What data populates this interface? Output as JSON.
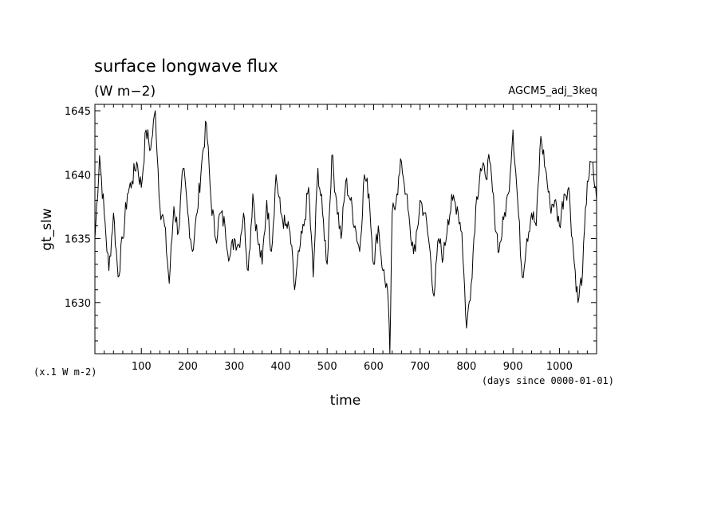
{
  "chart_data": {
    "type": "line",
    "title": "surface longwave flux",
    "units": "(W m−2)",
    "dataset_label": "AGCM5_adj_3keq",
    "xlabel": "time",
    "x_units_note": "(days since 0000-01-01)",
    "ylabel": "gt_slw",
    "y_scale_note": "(x.1 W m-2)",
    "xlim": [
      0,
      1080
    ],
    "ylim": [
      1626,
      1645.5
    ],
    "x_ticks": [
      100,
      200,
      300,
      400,
      500,
      600,
      700,
      800,
      900,
      1000
    ],
    "y_ticks": [
      1630,
      1635,
      1640,
      1645
    ],
    "grid": false,
    "series": [
      {
        "x": [
          0,
          10,
          20,
          30,
          40,
          50,
          60,
          70,
          80,
          90,
          100,
          110,
          120,
          130,
          140,
          150,
          160,
          170,
          180,
          190,
          200,
          210,
          220,
          230,
          240,
          250,
          260,
          270,
          280,
          290,
          300,
          310,
          320,
          330,
          340,
          350,
          360,
          370,
          380,
          390,
          400,
          410,
          420,
          430,
          440,
          450,
          460,
          470,
          480,
          490,
          500,
          510,
          520,
          530,
          540,
          550,
          560,
          570,
          580,
          590,
          600,
          610,
          620,
          630,
          635,
          640,
          650,
          660,
          670,
          680,
          690,
          700,
          710,
          720,
          730,
          740,
          750,
          760,
          770,
          780,
          790,
          800,
          810,
          820,
          830,
          840,
          850,
          860,
          870,
          880,
          890,
          900,
          910,
          920,
          930,
          940,
          950,
          960,
          970,
          980,
          990,
          1000,
          1010,
          1020,
          1030,
          1040,
          1050,
          1060,
          1070,
          1080
        ],
        "values": [
          1635.0,
          1641.5,
          1637.0,
          1632.5,
          1637.0,
          1632.0,
          1635.0,
          1638.5,
          1639.5,
          1641.0,
          1639.0,
          1643.5,
          1642.0,
          1645.0,
          1637.5,
          1636.0,
          1631.5,
          1637.5,
          1635.5,
          1640.5,
          1637.0,
          1634.0,
          1637.0,
          1641.0,
          1644.0,
          1638.0,
          1635.0,
          1637.0,
          1636.0,
          1633.5,
          1635.0,
          1634.5,
          1637.0,
          1632.5,
          1638.5,
          1635.0,
          1633.0,
          1638.0,
          1634.0,
          1640.0,
          1637.0,
          1636.0,
          1635.5,
          1631.0,
          1634.0,
          1636.0,
          1639.0,
          1632.0,
          1640.5,
          1637.0,
          1633.0,
          1641.5,
          1638.0,
          1635.0,
          1639.5,
          1638.0,
          1636.0,
          1634.0,
          1640.0,
          1638.5,
          1633.0,
          1636.0,
          1632.5,
          1631.0,
          1626.0,
          1637.0,
          1638.5,
          1641.0,
          1638.5,
          1635.0,
          1634.0,
          1638.0,
          1637.0,
          1634.5,
          1630.5,
          1635.0,
          1633.5,
          1636.5,
          1638.0,
          1637.5,
          1635.5,
          1628.0,
          1631.5,
          1637.5,
          1640.5,
          1640.0,
          1641.0,
          1637.0,
          1634.0,
          1636.5,
          1638.5,
          1643.5,
          1638.0,
          1632.0,
          1635.0,
          1637.0,
          1636.0,
          1643.0,
          1640.5,
          1637.5,
          1638.0,
          1636.0,
          1638.5,
          1639.0,
          1634.0,
          1630.0,
          1632.5,
          1639.5,
          1641.0,
          1638.0
        ]
      }
    ]
  }
}
